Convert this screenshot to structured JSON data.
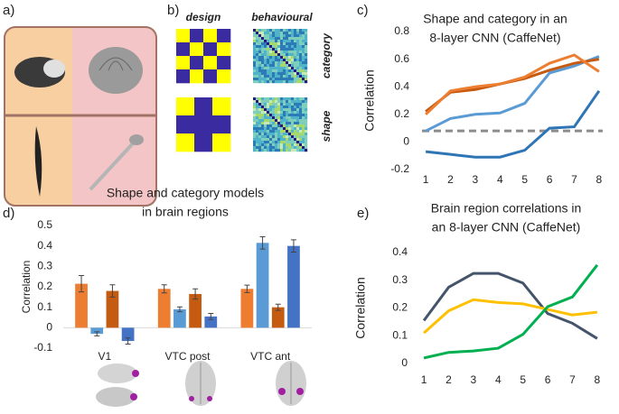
{
  "panel_a": {
    "label": "a)"
  },
  "panel_b": {
    "label": "b)",
    "columns": [
      "design",
      "behavioural"
    ],
    "rows": [
      "category",
      "shape"
    ]
  },
  "chart_data": [
    {
      "type": "line",
      "label": "c)",
      "title": [
        "Shape and category in an",
        "8-layer CNN (CaffeNet)"
      ],
      "ylabel": "Correlation",
      "x": [
        1,
        2,
        3,
        4,
        5,
        6,
        7,
        8
      ],
      "xlim": [
        0.85,
        8.15
      ],
      "xticks": [
        1,
        2,
        3,
        4,
        5,
        6,
        7,
        8
      ],
      "ylim": [
        -0.2,
        0.8
      ],
      "yticks": [
        -0.2,
        0,
        0.2,
        0.4,
        0.6,
        0.8
      ],
      "hline": {
        "value": 0.08,
        "color": "#8c8c8c"
      },
      "series": [
        {
          "color": "#5b9bd5",
          "values": [
            0.08,
            0.17,
            0.2,
            0.21,
            0.28,
            0.5,
            0.55,
            0.62
          ]
        },
        {
          "color": "#2e75b6",
          "values": [
            -0.07,
            -0.09,
            -0.11,
            -0.11,
            -0.06,
            0.1,
            0.11,
            0.37
          ]
        },
        {
          "color": "#c55a11",
          "values": [
            0.22,
            0.36,
            0.38,
            0.42,
            0.46,
            0.52,
            0.57,
            0.6
          ]
        },
        {
          "color": "#ed7d31",
          "values": [
            0.2,
            0.37,
            0.4,
            0.42,
            0.47,
            0.57,
            0.63,
            0.51
          ]
        }
      ]
    },
    {
      "type": "bar",
      "label": "d)",
      "title": [
        "Shape and category models",
        "in brain regions"
      ],
      "ylabel": "Correlation",
      "categories": [
        "V1",
        "VTC post",
        "VTC ant"
      ],
      "ylim": [
        -0.1,
        0.5
      ],
      "yticks": [
        -0.1,
        0,
        0.1,
        0.2,
        0.3,
        0.4,
        0.5
      ],
      "series": [
        {
          "color": "#ed7d31",
          "values": [
            0.215,
            0.19,
            0.19
          ],
          "errors": [
            0.04,
            0.02,
            0.018
          ]
        },
        {
          "color": "#5b9bd5",
          "values": [
            -0.03,
            0.09,
            0.415
          ],
          "errors": [
            0.01,
            0.012,
            0.03
          ]
        },
        {
          "color": "#c55a11",
          "values": [
            0.18,
            0.165,
            0.1
          ],
          "errors": [
            0.03,
            0.025,
            0.015
          ]
        },
        {
          "color": "#4472c4",
          "values": [
            -0.065,
            0.055,
            0.4
          ],
          "errors": [
            0.015,
            0.015,
            0.03
          ]
        }
      ]
    },
    {
      "type": "line",
      "label": "e)",
      "title": [
        "Brain region correlations in",
        "an 8-layer CNN (CaffeNet)"
      ],
      "ylabel": "Correlation",
      "x": [
        1,
        2,
        3,
        4,
        5,
        6,
        7,
        8
      ],
      "xlim": [
        0.85,
        8.15
      ],
      "xticks": [
        1,
        2,
        3,
        4,
        5,
        6,
        7,
        8
      ],
      "ylim": [
        0,
        0.4
      ],
      "yticks": [
        0,
        0.1,
        0.2,
        0.3,
        0.4
      ],
      "series": [
        {
          "color": "#44546a",
          "values": [
            0.155,
            0.275,
            0.325,
            0.325,
            0.29,
            0.18,
            0.145,
            0.09
          ]
        },
        {
          "color": "#ffc000",
          "values": [
            0.11,
            0.19,
            0.23,
            0.22,
            0.215,
            0.195,
            0.175,
            0.185
          ]
        },
        {
          "color": "#00b050",
          "values": [
            0.02,
            0.04,
            0.045,
            0.055,
            0.105,
            0.205,
            0.24,
            0.355
          ]
        }
      ]
    }
  ]
}
